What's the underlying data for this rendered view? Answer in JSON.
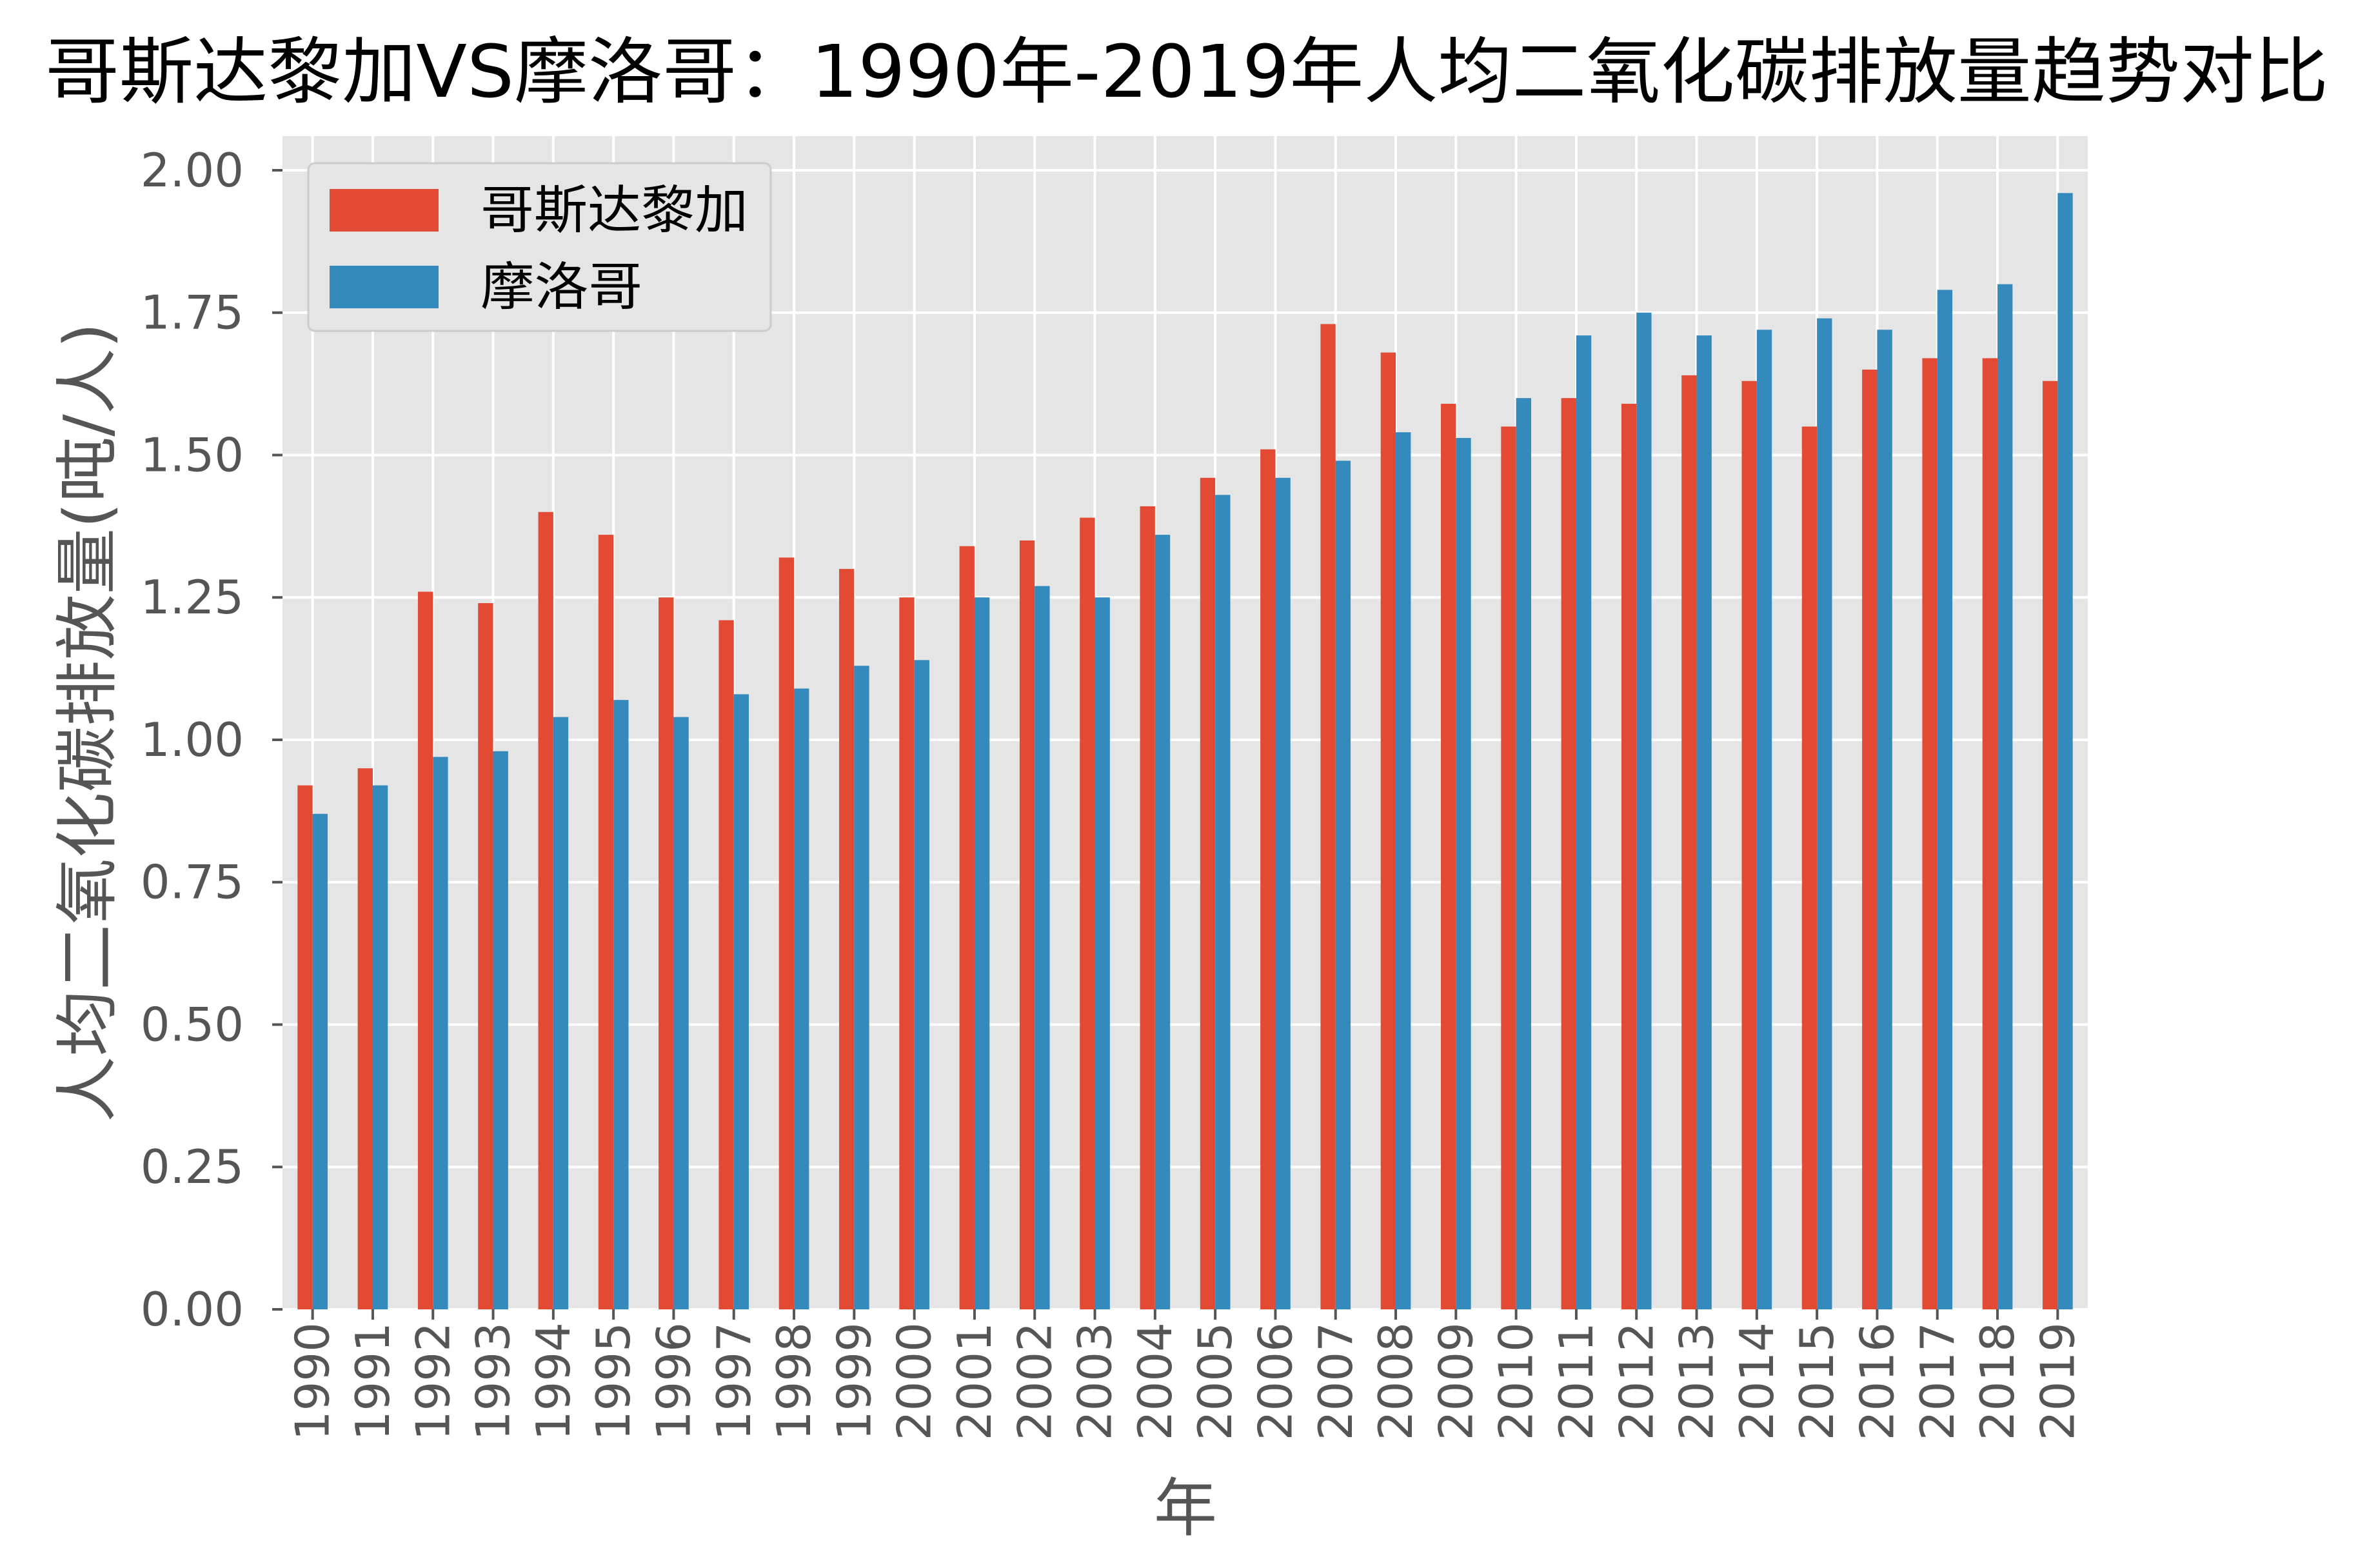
{
  "chart_data": {
    "type": "bar",
    "title": "哥斯达黎加VS摩洛哥：1990年-2019年人均二氧化碳排放量趋势对比",
    "xlabel": "年",
    "ylabel": "人均二氧化碳排放量(吨/人)",
    "categories": [
      "1990",
      "1991",
      "1992",
      "1993",
      "1994",
      "1995",
      "1996",
      "1997",
      "1998",
      "1999",
      "2000",
      "2001",
      "2002",
      "2003",
      "2004",
      "2005",
      "2006",
      "2007",
      "2008",
      "2009",
      "2010",
      "2011",
      "2012",
      "2013",
      "2014",
      "2015",
      "2016",
      "2017",
      "2018",
      "2019"
    ],
    "series": [
      {
        "name": "哥斯达黎加",
        "color": "#E24A33",
        "values": [
          0.92,
          0.95,
          1.26,
          1.24,
          1.4,
          1.36,
          1.25,
          1.21,
          1.32,
          1.3,
          1.25,
          1.34,
          1.35,
          1.39,
          1.41,
          1.46,
          1.51,
          1.73,
          1.68,
          1.59,
          1.55,
          1.6,
          1.59,
          1.64,
          1.63,
          1.55,
          1.65,
          1.67,
          1.67,
          1.63
        ]
      },
      {
        "name": "摩洛哥",
        "color": "#348ABD",
        "values": [
          0.87,
          0.92,
          0.97,
          0.98,
          1.04,
          1.07,
          1.04,
          1.08,
          1.09,
          1.13,
          1.14,
          1.25,
          1.27,
          1.25,
          1.36,
          1.43,
          1.46,
          1.49,
          1.54,
          1.53,
          1.6,
          1.71,
          1.75,
          1.71,
          1.72,
          1.74,
          1.72,
          1.79,
          1.8,
          1.96
        ]
      }
    ],
    "ylim": [
      0,
      2.06
    ],
    "yticks": [
      "0.00",
      "0.25",
      "0.50",
      "0.75",
      "1.00",
      "1.25",
      "1.50",
      "1.75",
      "2.00"
    ],
    "grid": true,
    "legend": "top-left",
    "plot_background": "#E5E5E5",
    "grid_color": "#FFFFFF",
    "axis_text_color": "#555555"
  }
}
